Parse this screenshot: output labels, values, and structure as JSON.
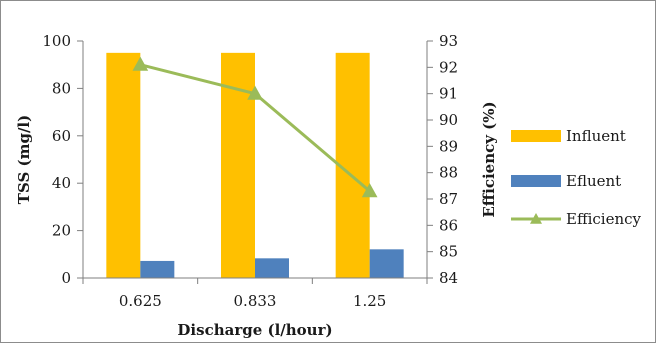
{
  "chart_data": {
    "type": "bar",
    "title": "",
    "categories": [
      "0.625",
      "0.833",
      "1.25"
    ],
    "xlabel": "Discharge (l/hour)",
    "ylabel": "TSS (mg/l)",
    "y2label": "Efficiency (%)",
    "ylim": [
      0,
      100
    ],
    "yticks": [
      "0",
      "20",
      "40",
      "60",
      "80",
      "100"
    ],
    "y2lim": [
      84,
      93
    ],
    "y2ticks": [
      "84",
      "85",
      "86",
      "87",
      "88",
      "89",
      "90",
      "91",
      "92",
      "93"
    ],
    "grid": false,
    "legend_position": "right",
    "series": [
      {
        "name": "Influent",
        "kind": "bar",
        "axis": "left",
        "color": "#FFC000",
        "values": [
          95,
          95,
          95
        ]
      },
      {
        "name": "Efluent",
        "kind": "bar",
        "axis": "left",
        "color": "#4F81BD",
        "values": [
          7.2,
          8.3,
          12.1
        ]
      },
      {
        "name": "Efficiency",
        "kind": "line",
        "axis": "right",
        "color": "#9BBB59",
        "marker": "triangle",
        "values": [
          92.1,
          91.0,
          87.3
        ]
      }
    ]
  }
}
